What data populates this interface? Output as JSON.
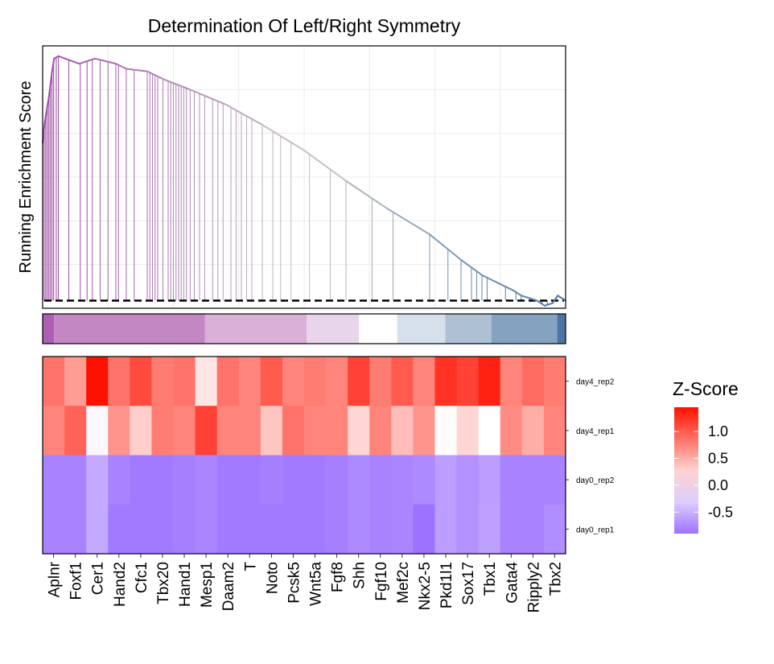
{
  "chart_data": [
    {
      "type": "line",
      "title": "Determination Of Left/Right Symmetry",
      "ylabel": "Running Enrichment Score",
      "xlabel": "",
      "grid": true,
      "line_color_start": "#a04da8",
      "line_color_mid": "#c9c9c9",
      "line_color_end": "#4a76a0",
      "baseline_color": "#000000",
      "x": [
        0.0,
        0.004,
        0.012,
        0.018,
        0.022,
        0.03,
        0.07,
        0.1,
        0.14,
        0.16,
        0.2,
        0.23,
        0.28,
        0.35,
        0.42,
        0.5,
        0.58,
        0.66,
        0.74,
        0.8,
        0.84,
        0.87,
        0.9,
        0.915,
        0.93,
        0.945,
        0.96,
        0.975,
        0.985,
        1.0
      ],
      "y": [
        0.62,
        0.7,
        0.8,
        0.9,
        0.95,
        0.96,
        0.93,
        0.95,
        0.93,
        0.91,
        0.9,
        0.87,
        0.83,
        0.77,
        0.69,
        0.59,
        0.47,
        0.36,
        0.26,
        0.16,
        0.1,
        0.07,
        0.04,
        0.02,
        0.01,
        0.0,
        -0.02,
        -0.01,
        0.02,
        0.0
      ],
      "hits": [
        0.0,
        0.003,
        0.006,
        0.009,
        0.012,
        0.015,
        0.018,
        0.021,
        0.026,
        0.03,
        0.05,
        0.072,
        0.085,
        0.095,
        0.11,
        0.125,
        0.14,
        0.145,
        0.16,
        0.175,
        0.2,
        0.205,
        0.21,
        0.215,
        0.22,
        0.23,
        0.24,
        0.245,
        0.25,
        0.255,
        0.26,
        0.265,
        0.27,
        0.275,
        0.282,
        0.29,
        0.3,
        0.31,
        0.325,
        0.335,
        0.345,
        0.36,
        0.37,
        0.38,
        0.39,
        0.4,
        0.42,
        0.44,
        0.455,
        0.475,
        0.51,
        0.55,
        0.58,
        0.63,
        0.67,
        0.74,
        0.775,
        0.8,
        0.82,
        0.83,
        0.84,
        0.85,
        0.885,
        0.905,
        0.915,
        0.94,
        0.955,
        0.965
      ]
    },
    {
      "type": "heatmap",
      "columns": [
        "Aplnr",
        "Foxf1",
        "Cer1",
        "Hand2",
        "Cfc1",
        "Tbx20",
        "Hand1",
        "Mesp1",
        "Daam2",
        "T",
        "Noto",
        "Pcsk5",
        "Wnt5a",
        "Fgf8",
        "Shh",
        "Fgf10",
        "Mef2c",
        "Nkx2-5",
        "Pkd1l1",
        "Sox17",
        "Tbx1",
        "Gata4",
        "Ripply2",
        "Tbx2"
      ],
      "rows": [
        "day4_rep2",
        "day4_rep1",
        "day0_rep2",
        "day0_rep1"
      ],
      "values": [
        [
          0.85,
          0.6,
          1.45,
          0.85,
          1.1,
          0.8,
          0.85,
          0.15,
          0.85,
          0.75,
          1.0,
          0.75,
          0.8,
          0.75,
          1.15,
          0.8,
          1.0,
          0.75,
          1.25,
          1.15,
          1.35,
          0.75,
          0.9,
          0.8
        ],
        [
          0.75,
          0.95,
          -0.05,
          0.65,
          0.3,
          0.8,
          0.75,
          1.15,
          0.75,
          0.75,
          0.35,
          0.85,
          0.75,
          0.75,
          0.25,
          0.75,
          0.4,
          0.65,
          0.02,
          0.25,
          0.0,
          0.7,
          0.5,
          0.75
        ],
        [
          -0.8,
          -0.8,
          -0.55,
          -0.8,
          -0.85,
          -0.85,
          -0.82,
          -0.78,
          -0.85,
          -0.85,
          -0.82,
          -0.85,
          -0.85,
          -0.82,
          -0.75,
          -0.8,
          -0.78,
          -0.75,
          -0.62,
          -0.7,
          -0.62,
          -0.8,
          -0.8,
          -0.8
        ],
        [
          -0.8,
          -0.8,
          -0.55,
          -0.85,
          -0.85,
          -0.85,
          -0.82,
          -0.78,
          -0.85,
          -0.85,
          -0.85,
          -0.85,
          -0.85,
          -0.82,
          -0.75,
          -0.8,
          -0.78,
          -1.05,
          -0.62,
          -0.7,
          -0.6,
          -0.8,
          -0.8,
          -0.72
        ]
      ],
      "legend_title": "Z-Score",
      "legend_ticks": [
        "1.0",
        "0.5",
        "0.0",
        "-0.5"
      ],
      "legend_tick_values": [
        1.0,
        0.5,
        0.0,
        -0.5
      ],
      "range": [
        -0.9,
        1.45
      ],
      "color_low": "#9d72ff",
      "color_mid": "#ffffff",
      "color_high": "#ff1100"
    },
    {
      "type": "bar",
      "name": "ranked-list-colorbar",
      "segments": [
        {
          "start": 0.0,
          "end": 0.022,
          "color": "#b05db5"
        },
        {
          "start": 0.022,
          "end": 0.31,
          "color": "#c387c4"
        },
        {
          "start": 0.31,
          "end": 0.505,
          "color": "#d8b0d8"
        },
        {
          "start": 0.505,
          "end": 0.605,
          "color": "#e9d5ea"
        },
        {
          "start": 0.605,
          "end": 0.678,
          "color": "#ffffff"
        },
        {
          "start": 0.678,
          "end": 0.77,
          "color": "#d5e0ea"
        },
        {
          "start": 0.77,
          "end": 0.858,
          "color": "#aec0d4"
        },
        {
          "start": 0.858,
          "end": 0.984,
          "color": "#84a3c1"
        },
        {
          "start": 0.984,
          "end": 1.0,
          "color": "#4a76a6"
        }
      ]
    }
  ]
}
